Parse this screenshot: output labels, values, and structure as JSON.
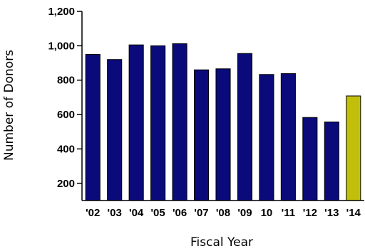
{
  "chart_data": {
    "type": "bar",
    "title": "",
    "xlabel": "Fiscal Year",
    "ylabel": "Number of Donors",
    "categories": [
      "'02",
      "'03",
      "'04",
      "'05",
      "'06",
      "'07",
      "'08",
      "'09",
      "10",
      "'11",
      "'12",
      "'13",
      "'14"
    ],
    "values": [
      950,
      920,
      1005,
      1000,
      1012,
      860,
      866,
      955,
      833,
      838,
      583,
      557,
      708
    ],
    "ylim": [
      100,
      1200
    ],
    "yticks": [
      200,
      400,
      600,
      800,
      1000,
      1200
    ],
    "ytick_labels": [
      "200",
      "400",
      "600",
      "800",
      "1,000",
      "1,200"
    ],
    "grid": false,
    "legend": "none",
    "colors": {
      "bar": "#0a0a7a",
      "highlight": "#c2bf0a",
      "highlight_category": "'14"
    }
  }
}
